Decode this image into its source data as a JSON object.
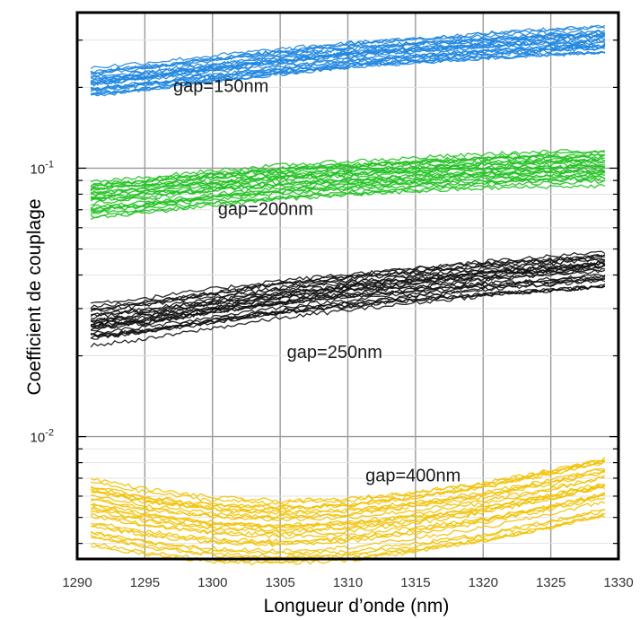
{
  "chart_data": {
    "type": "line",
    "title": "",
    "xlabel": "Longueur d’onde (nm)",
    "ylabel": "Coefficient de couplage",
    "xlim": [
      1290,
      1330
    ],
    "ylim": [
      0.0035,
      0.38
    ],
    "yscale": "log",
    "grid": true,
    "x_ticks": [
      "1290",
      "1295",
      "1300",
      "1305",
      "1310",
      "1315",
      "1320",
      "1325",
      "1330"
    ],
    "y_ticks": [
      {
        "value": 0.1,
        "base": "10",
        "exp": "-1"
      },
      {
        "value": 0.01,
        "base": "10",
        "exp": "-2"
      }
    ],
    "x": [
      1291,
      1295,
      1300,
      1305,
      1310,
      1315,
      1320,
      1325,
      1329
    ],
    "series": [
      {
        "name": "gap=150nm",
        "color": "#1e86e0",
        "traces": 24,
        "values": [
          0.21,
          0.22,
          0.235,
          0.25,
          0.265,
          0.275,
          0.285,
          0.295,
          0.3
        ],
        "spread": [
          0.88,
          1.1
        ]
      },
      {
        "name": "gap=200nm",
        "color": "#1dc21d",
        "traces": 24,
        "values": [
          0.077,
          0.08,
          0.085,
          0.089,
          0.092,
          0.095,
          0.098,
          0.1,
          0.101
        ],
        "spread": [
          0.86,
          1.14
        ]
      },
      {
        "name": "gap=250nm",
        "color": "#111111",
        "traces": 26,
        "values": [
          0.0262,
          0.0275,
          0.03,
          0.0325,
          0.0345,
          0.0365,
          0.0385,
          0.04,
          0.0415
        ],
        "spread": [
          0.86,
          1.16
        ]
      },
      {
        "name": "gap=400nm",
        "color": "#f2c200",
        "traces": 26,
        "values": [
          0.005,
          0.0046,
          0.0043,
          0.0042,
          0.0043,
          0.0046,
          0.005,
          0.0056,
          0.0062
        ],
        "spread": [
          0.8,
          1.35
        ]
      }
    ],
    "annotations": [
      {
        "text": "gap=150nm",
        "x": 1297.1,
        "y": 0.192
      },
      {
        "text": "gap=200nm",
        "x": 1300.4,
        "y": 0.067
      },
      {
        "text": "gap=250nm",
        "x": 1305.5,
        "y": 0.0196
      },
      {
        "text": "gap=400nm",
        "x": 1311.3,
        "y": 0.0068
      }
    ]
  }
}
